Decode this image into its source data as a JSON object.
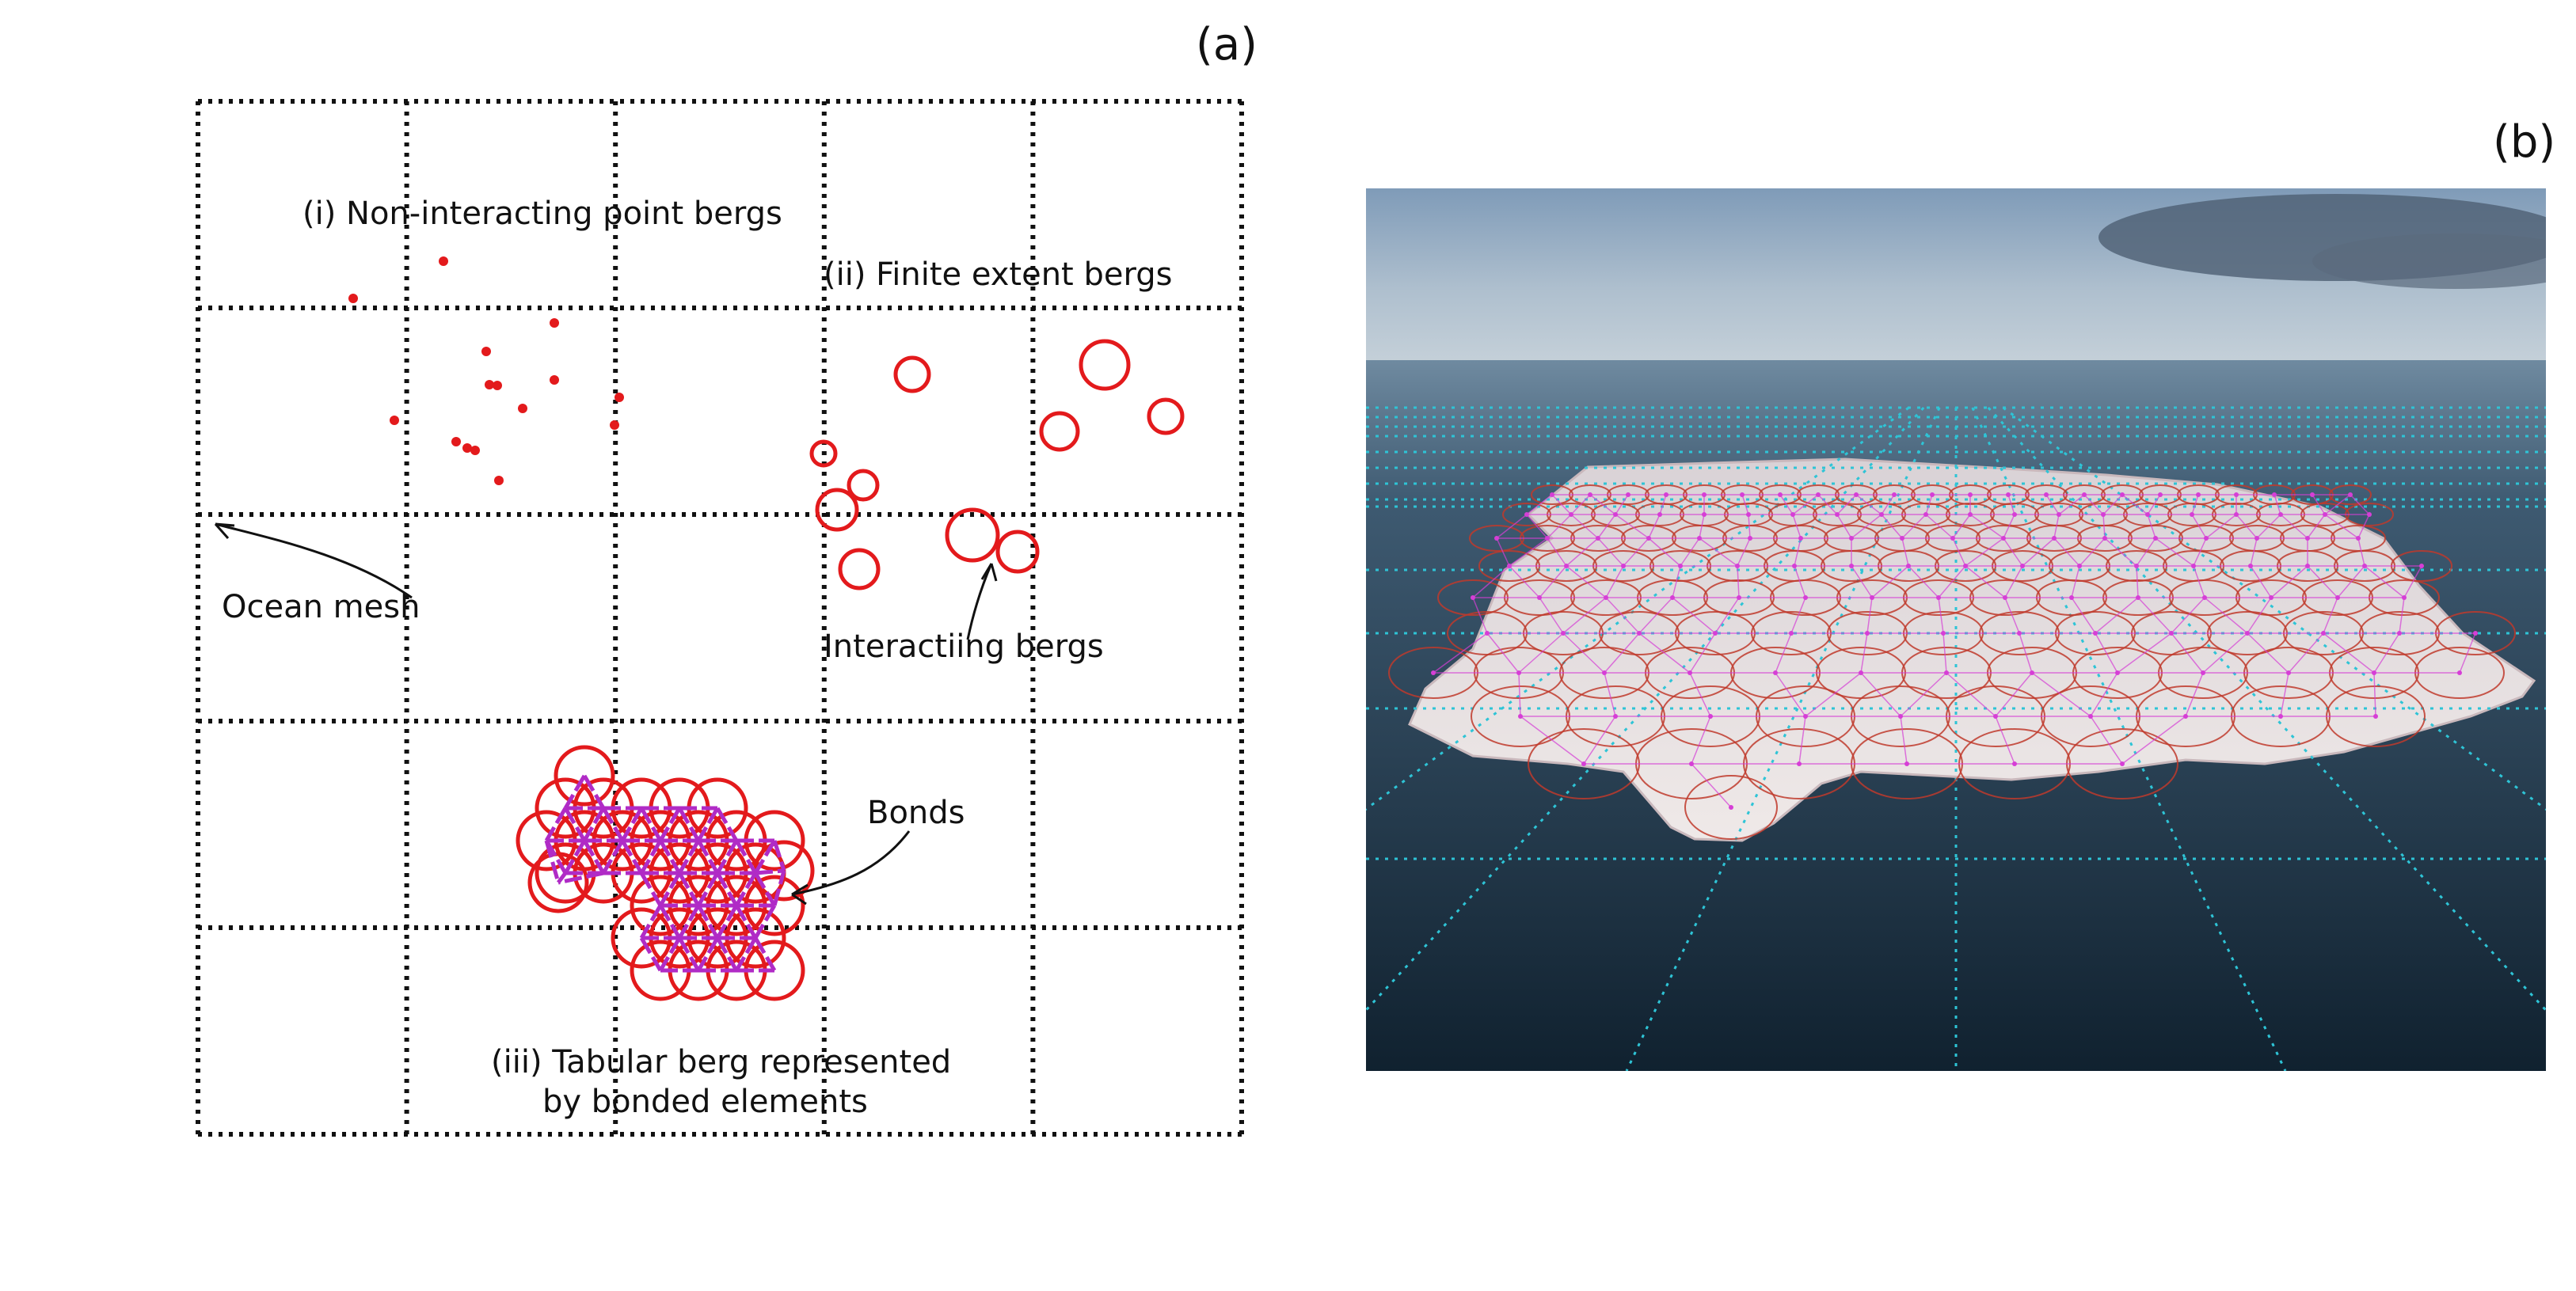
{
  "panel_a": {
    "label": "(a)",
    "grid": {
      "cols": 5,
      "rows": 5,
      "line_color": "#111111",
      "line_style": "dotted"
    },
    "annotations": {
      "point_bergs": "(i) Non-interacting point bergs",
      "finite_bergs": "(ii) Finite extent bergs",
      "ocean_mesh": "Ocean mesh",
      "interacting": "Interactiing bergs",
      "bonds": "Bonds",
      "tabular_line1": "(iii) Tabular berg represented",
      "tabular_line2": "by bonded elements"
    },
    "colors": {
      "berg": "#e31a1c",
      "bond": "#b02bc6",
      "text": "#111111"
    }
  },
  "panel_b": {
    "label": "(b)",
    "overlay_color": "#2ec4d6",
    "element_color": "#c0392b",
    "bond_color": "#d63fd6",
    "sky_color": "#8fa6bd",
    "sea_color": "#1d3347",
    "ice_color": "#e8e2e2"
  }
}
